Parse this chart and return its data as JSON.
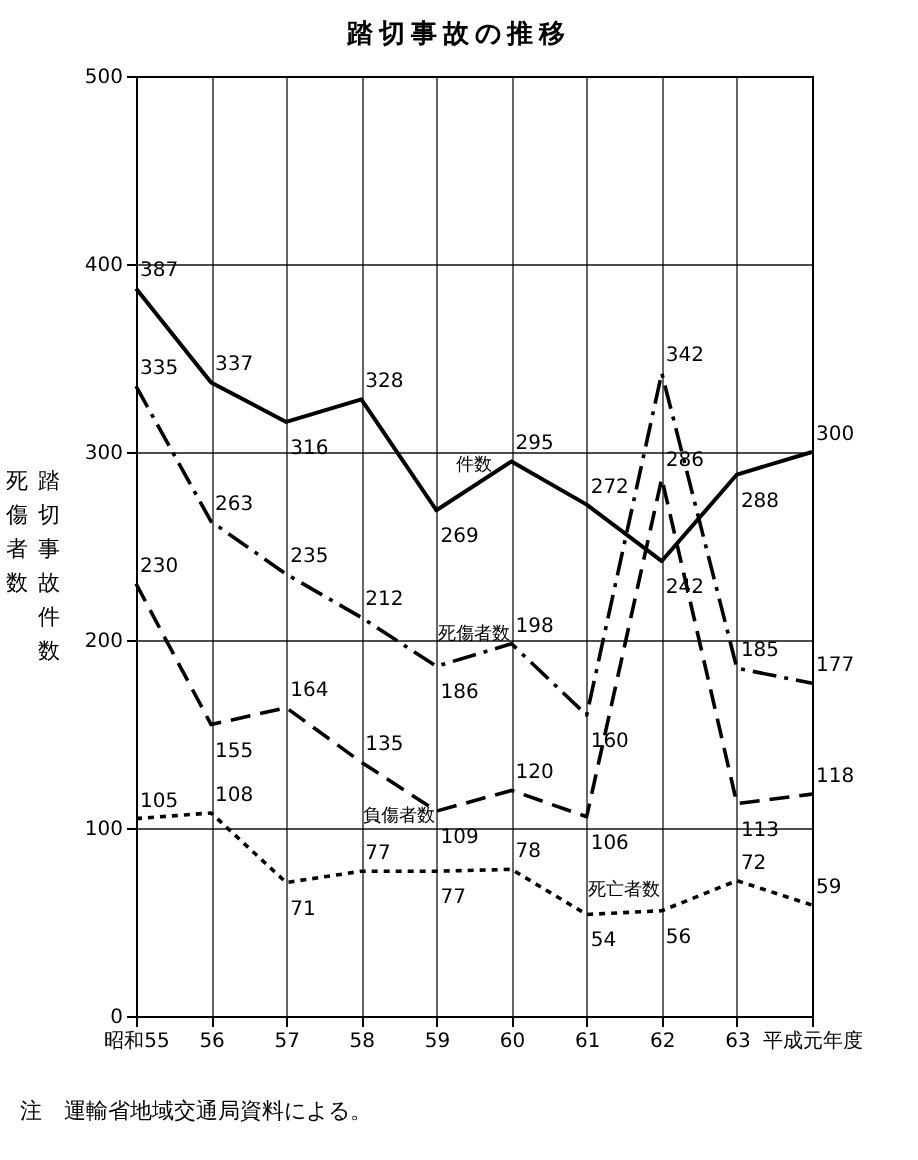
{
  "chart_data": {
    "type": "line",
    "title": "踏切事故の推移",
    "ylabel": "踏切事故件数",
    "categories": [
      "昭和55",
      "56",
      "57",
      "58",
      "59",
      "60",
      "61",
      "62",
      "63",
      "平成元年度"
    ],
    "series": [
      {
        "name": "件数",
        "color": "#000000",
        "line_style": "solid",
        "values": [
          387,
          337,
          316,
          328,
          269,
          295,
          272,
          242,
          288,
          300
        ]
      },
      {
        "name": "死傷者数",
        "color": "#000000",
        "line_style": "dashdot",
        "values": [
          335,
          263,
          235,
          212,
          186,
          198,
          160,
          342,
          185,
          177
        ]
      },
      {
        "name": "負傷者数",
        "color": "#000000",
        "line_style": "dashed",
        "values": [
          230,
          155,
          164,
          135,
          109,
          120,
          106,
          286,
          113,
          118
        ]
      },
      {
        "name": "死亡者数",
        "color": "#000000",
        "line_style": "dotted",
        "values": [
          105,
          108,
          71,
          77,
          77,
          78,
          54,
          56,
          72,
          59
        ]
      }
    ],
    "ylim": [
      0,
      500
    ],
    "yticks": [
      0,
      100,
      200,
      300,
      400,
      500
    ],
    "grid": true,
    "legend": false,
    "marker": "none",
    "data_labels": true,
    "annotations": [
      "死傷者数",
      "注　運輸省地域交通局資料による。"
    ]
  }
}
